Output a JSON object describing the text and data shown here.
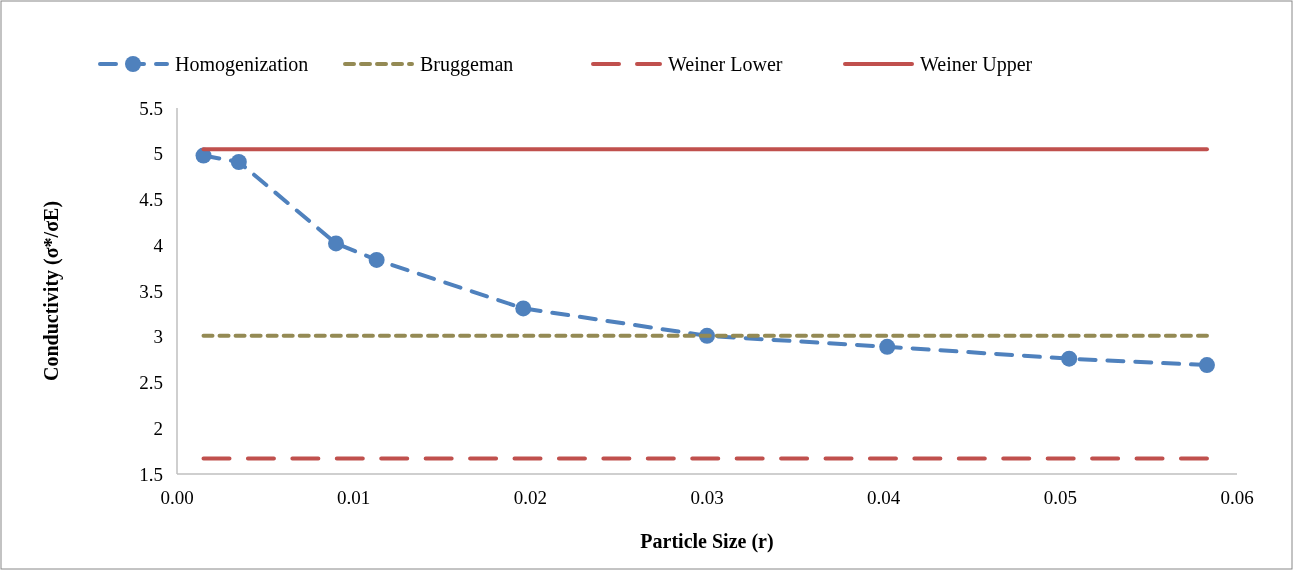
{
  "chart_data": {
    "type": "line",
    "xlabel": "Particle Size (r)",
    "ylabel": "Conductivity (σ*/σE)",
    "xlim": [
      0,
      0.06
    ],
    "xticks": [
      {
        "value": 0,
        "label": "0.00"
      },
      {
        "value": 0.01,
        "label": "0.01"
      },
      {
        "value": 0.02,
        "label": "0.02"
      },
      {
        "value": 0.03,
        "label": "0.03"
      },
      {
        "value": 0.04,
        "label": "0.04"
      },
      {
        "value": 0.05,
        "label": "0.05"
      },
      {
        "value": 0.06,
        "label": "0.06"
      }
    ],
    "ylim": [
      1.5,
      5.5
    ],
    "yticks": [
      1.5,
      2,
      2.5,
      3,
      3.5,
      4,
      4.5,
      5,
      5.5
    ],
    "grid": false,
    "legend": "top",
    "series": [
      {
        "name": "Homogenization",
        "color": "#4f81bd",
        "line_style": "dashed",
        "marker": "circle",
        "x": [
          0.0015,
          0.0035,
          0.009,
          0.0113,
          0.0196,
          0.03,
          0.0402,
          0.0505,
          0.0583
        ],
        "values": [
          4.98,
          4.91,
          4.02,
          3.84,
          3.31,
          3.01,
          2.89,
          2.76,
          2.69
        ]
      },
      {
        "name": "Bruggeman",
        "color": "#948a54",
        "line_style": "dotted",
        "marker": "none",
        "x": [
          0.0015,
          0.0583
        ],
        "values": [
          3.01,
          3.01
        ]
      },
      {
        "name": "Weiner Lower",
        "color": "#c0504d",
        "line_style": "dashed",
        "marker": "none",
        "x": [
          0.0015,
          0.0583
        ],
        "values": [
          1.67,
          1.67
        ]
      },
      {
        "name": "Weiner Upper",
        "color": "#c0504d",
        "line_style": "solid",
        "marker": "none",
        "x": [
          0.0015,
          0.0583
        ],
        "values": [
          5.05,
          5.05
        ]
      }
    ]
  }
}
